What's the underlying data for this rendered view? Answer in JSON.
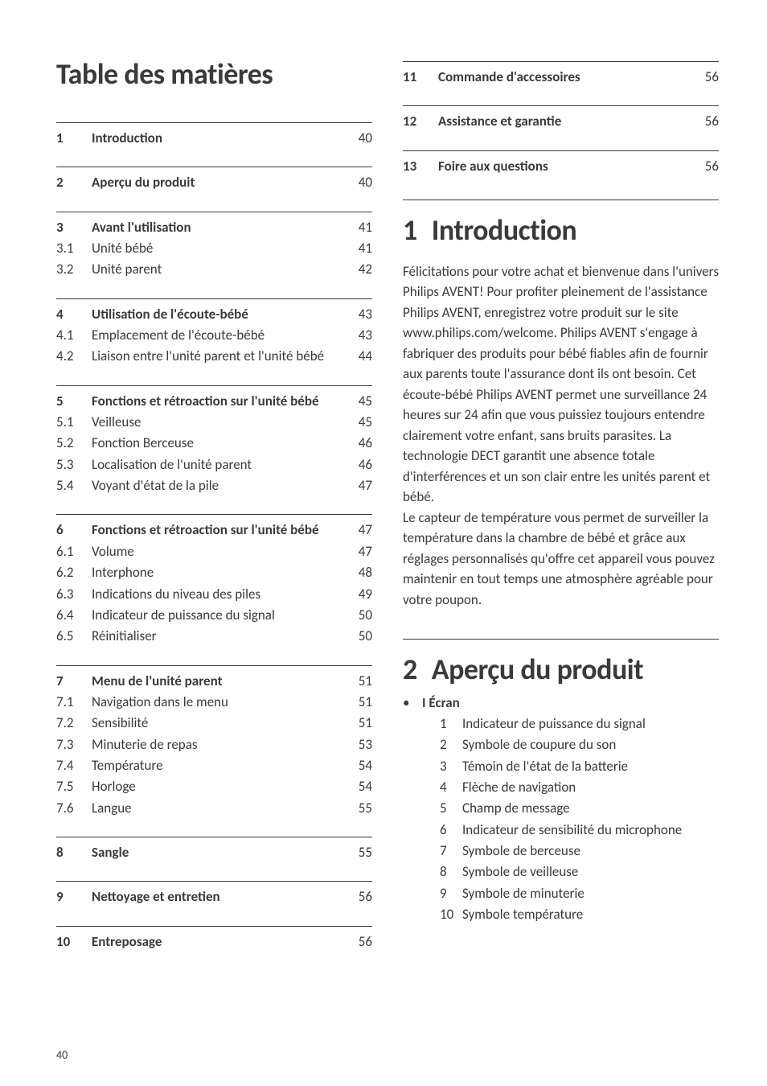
{
  "colors": {
    "text": "#3a3a3a",
    "background": "#ffffff",
    "rule": "#3a3a3a"
  },
  "typography": {
    "body_size_pt": 12,
    "title_size_pt": 27,
    "font_family": "Gill Sans"
  },
  "toc_title": "Table des matières",
  "toc": [
    [
      {
        "num": "1",
        "label": "Introduction",
        "page": "40",
        "bold": true
      }
    ],
    [
      {
        "num": "2",
        "label": "Aperçu du produit",
        "page": "40",
        "bold": true
      }
    ],
    [
      {
        "num": "3",
        "label": "Avant l'utilisation",
        "page": "41",
        "bold": true
      },
      {
        "num": "3.1",
        "label": "Unité bébé",
        "page": "41",
        "bold": false
      },
      {
        "num": "3.2",
        "label": "Unité parent",
        "page": "42",
        "bold": false
      }
    ],
    [
      {
        "num": "4",
        "label": "Utilisation de l'écoute-bébé",
        "page": "43",
        "bold": true
      },
      {
        "num": "4.1",
        "label": "Emplacement de l'écoute-bébé",
        "page": "43",
        "bold": false
      },
      {
        "num": "4.2",
        "label": "Liaison entre l'unité parent et l'unité bébé",
        "page": "44",
        "bold": false
      }
    ],
    [
      {
        "num": "5",
        "label": "Fonctions et rétroaction sur l'unité bébé",
        "page": "45",
        "bold": true
      },
      {
        "num": "5.1",
        "label": "Veilleuse",
        "page": "45",
        "bold": false
      },
      {
        "num": "5.2",
        "label": "Fonction Berceuse",
        "page": "46",
        "bold": false
      },
      {
        "num": "5.3",
        "label": "Localisation de l'unité parent",
        "page": "46",
        "bold": false
      },
      {
        "num": "5.4",
        "label": "Voyant d'état de la pile",
        "page": "47",
        "bold": false
      }
    ],
    [
      {
        "num": "6",
        "label": "Fonctions et rétroaction sur l'unité bébé",
        "page": "47",
        "bold": true
      },
      {
        "num": "6.1",
        "label": "Volume",
        "page": "47",
        "bold": false
      },
      {
        "num": "6.2",
        "label": "Interphone",
        "page": "48",
        "bold": false
      },
      {
        "num": "6.3",
        "label": "Indications du niveau des piles",
        "page": "49",
        "bold": false
      },
      {
        "num": "6.4",
        "label": "Indicateur de puissance du signal",
        "page": "50",
        "bold": false
      },
      {
        "num": "6.5",
        "label": "Réinitialiser",
        "page": "50",
        "bold": false
      }
    ],
    [
      {
        "num": "7",
        "label": "Menu de l'unité parent",
        "page": "51",
        "bold": true
      },
      {
        "num": "7.1",
        "label": "Navigation dans le menu",
        "page": "51",
        "bold": false
      },
      {
        "num": "7.2",
        "label": "Sensibilité",
        "page": "51",
        "bold": false
      },
      {
        "num": "7.3",
        "label": "Minuterie de repas",
        "page": "53",
        "bold": false
      },
      {
        "num": "7.4",
        "label": "Température",
        "page": "54",
        "bold": false
      },
      {
        "num": "7.5",
        "label": "Horloge",
        "page": "54",
        "bold": false
      },
      {
        "num": "7.6",
        "label": "Langue",
        "page": "55",
        "bold": false
      }
    ],
    [
      {
        "num": "8",
        "label": "Sangle",
        "page": "55",
        "bold": true
      }
    ],
    [
      {
        "num": "9",
        "label": "Nettoyage et entretien",
        "page": "56",
        "bold": true
      }
    ],
    [
      {
        "num": "10",
        "label": "Entreposage",
        "page": "56",
        "bold": true
      }
    ]
  ],
  "toc_right": [
    [
      {
        "num": "11",
        "label": "Commande d'accessoires",
        "page": "56",
        "bold": true
      }
    ],
    [
      {
        "num": "12",
        "label": "Assistance et garantie",
        "page": "56",
        "bold": true
      }
    ],
    [
      {
        "num": "13",
        "label": "Foire aux questions",
        "page": "56",
        "bold": true
      }
    ]
  ],
  "section1": {
    "num": "1",
    "title": "Introduction",
    "body": "Félicitations pour votre achat et bienvenue dans l'univers Philips AVENT! Pour profiter pleinement de l'assistance Philips AVENT, enregistrez votre produit sur le site www.philips.com/welcome. Philips AVENT s'engage à fabriquer des produits pour bébé fiables afin de fournir aux parents toute l'assurance dont ils ont besoin. Cet écoute-bébé Philips AVENT permet une surveillance 24 heures sur 24 afin que vous puissiez toujours entendre clairement votre enfant, sans bruits parasites. La technologie DECT garantit une absence totale d'interférences et un son clair entre les unités parent et bébé.\nLe capteur de température vous permet de surveiller la température dans la chambre de bébé et grâce aux réglages personnalisés qu'offre cet appareil vous pouvez maintenir en tout temps une atmosphère agréable pour votre poupon."
  },
  "section2": {
    "num": "2",
    "title": "Aperçu du produit",
    "bullet_label": "I Écran",
    "items": [
      {
        "n": "1",
        "t": "Indicateur de puissance du signal"
      },
      {
        "n": "2",
        "t": "Symbole de coupure du son"
      },
      {
        "n": "3",
        "t": "Témoin de l'état de la batterie"
      },
      {
        "n": "4",
        "t": "Flèche de navigation"
      },
      {
        "n": "5",
        "t": "Champ de message"
      },
      {
        "n": "6",
        "t": "Indicateur de sensibilité du microphone"
      },
      {
        "n": "7",
        "t": "Symbole de berceuse"
      },
      {
        "n": "8",
        "t": "Symbole de veilleuse"
      },
      {
        "n": "9",
        "t": "Symbole de minuterie"
      },
      {
        "n": "10",
        "t": "Symbole température"
      }
    ]
  },
  "footer_page": "40"
}
